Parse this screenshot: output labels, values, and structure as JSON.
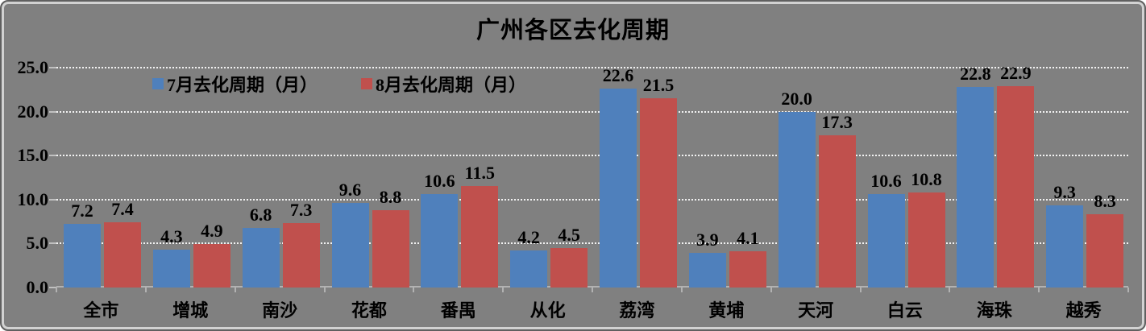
{
  "window": {
    "background": "#808080",
    "border_color": "#606060",
    "inner_border_color": "#d2d2d2"
  },
  "chart_data": {
    "type": "bar",
    "title": "广州各区去化周期",
    "categories": [
      "全市",
      "增城",
      "南沙",
      "花都",
      "番禺",
      "从化",
      "荔湾",
      "黄埔",
      "天河",
      "白云",
      "海珠",
      "越秀"
    ],
    "series": [
      {
        "name": "7月去化周期（月）",
        "color": "#4F80BC",
        "values": [
          7.2,
          4.3,
          6.8,
          9.6,
          10.6,
          4.2,
          22.6,
          3.9,
          20.0,
          10.6,
          22.8,
          9.3
        ]
      },
      {
        "name": "8月去化周期（月）",
        "color": "#C0504D",
        "values": [
          7.4,
          4.9,
          7.3,
          8.8,
          11.5,
          4.5,
          21.5,
          4.1,
          17.3,
          10.8,
          22.9,
          8.3
        ]
      }
    ],
    "ylim": [
      0,
      25
    ],
    "ytick_interval": 5,
    "ytick_labels": [
      "0.0",
      "5.0",
      "10.0",
      "15.0",
      "20.0",
      "25.0"
    ],
    "grid": true,
    "gridline_color": "#f2f2f2",
    "axis_color": "#b2b2b2",
    "label_color": "#000000",
    "legend_position": "top-inside",
    "data_labels": true,
    "value_decimals": 1
  }
}
